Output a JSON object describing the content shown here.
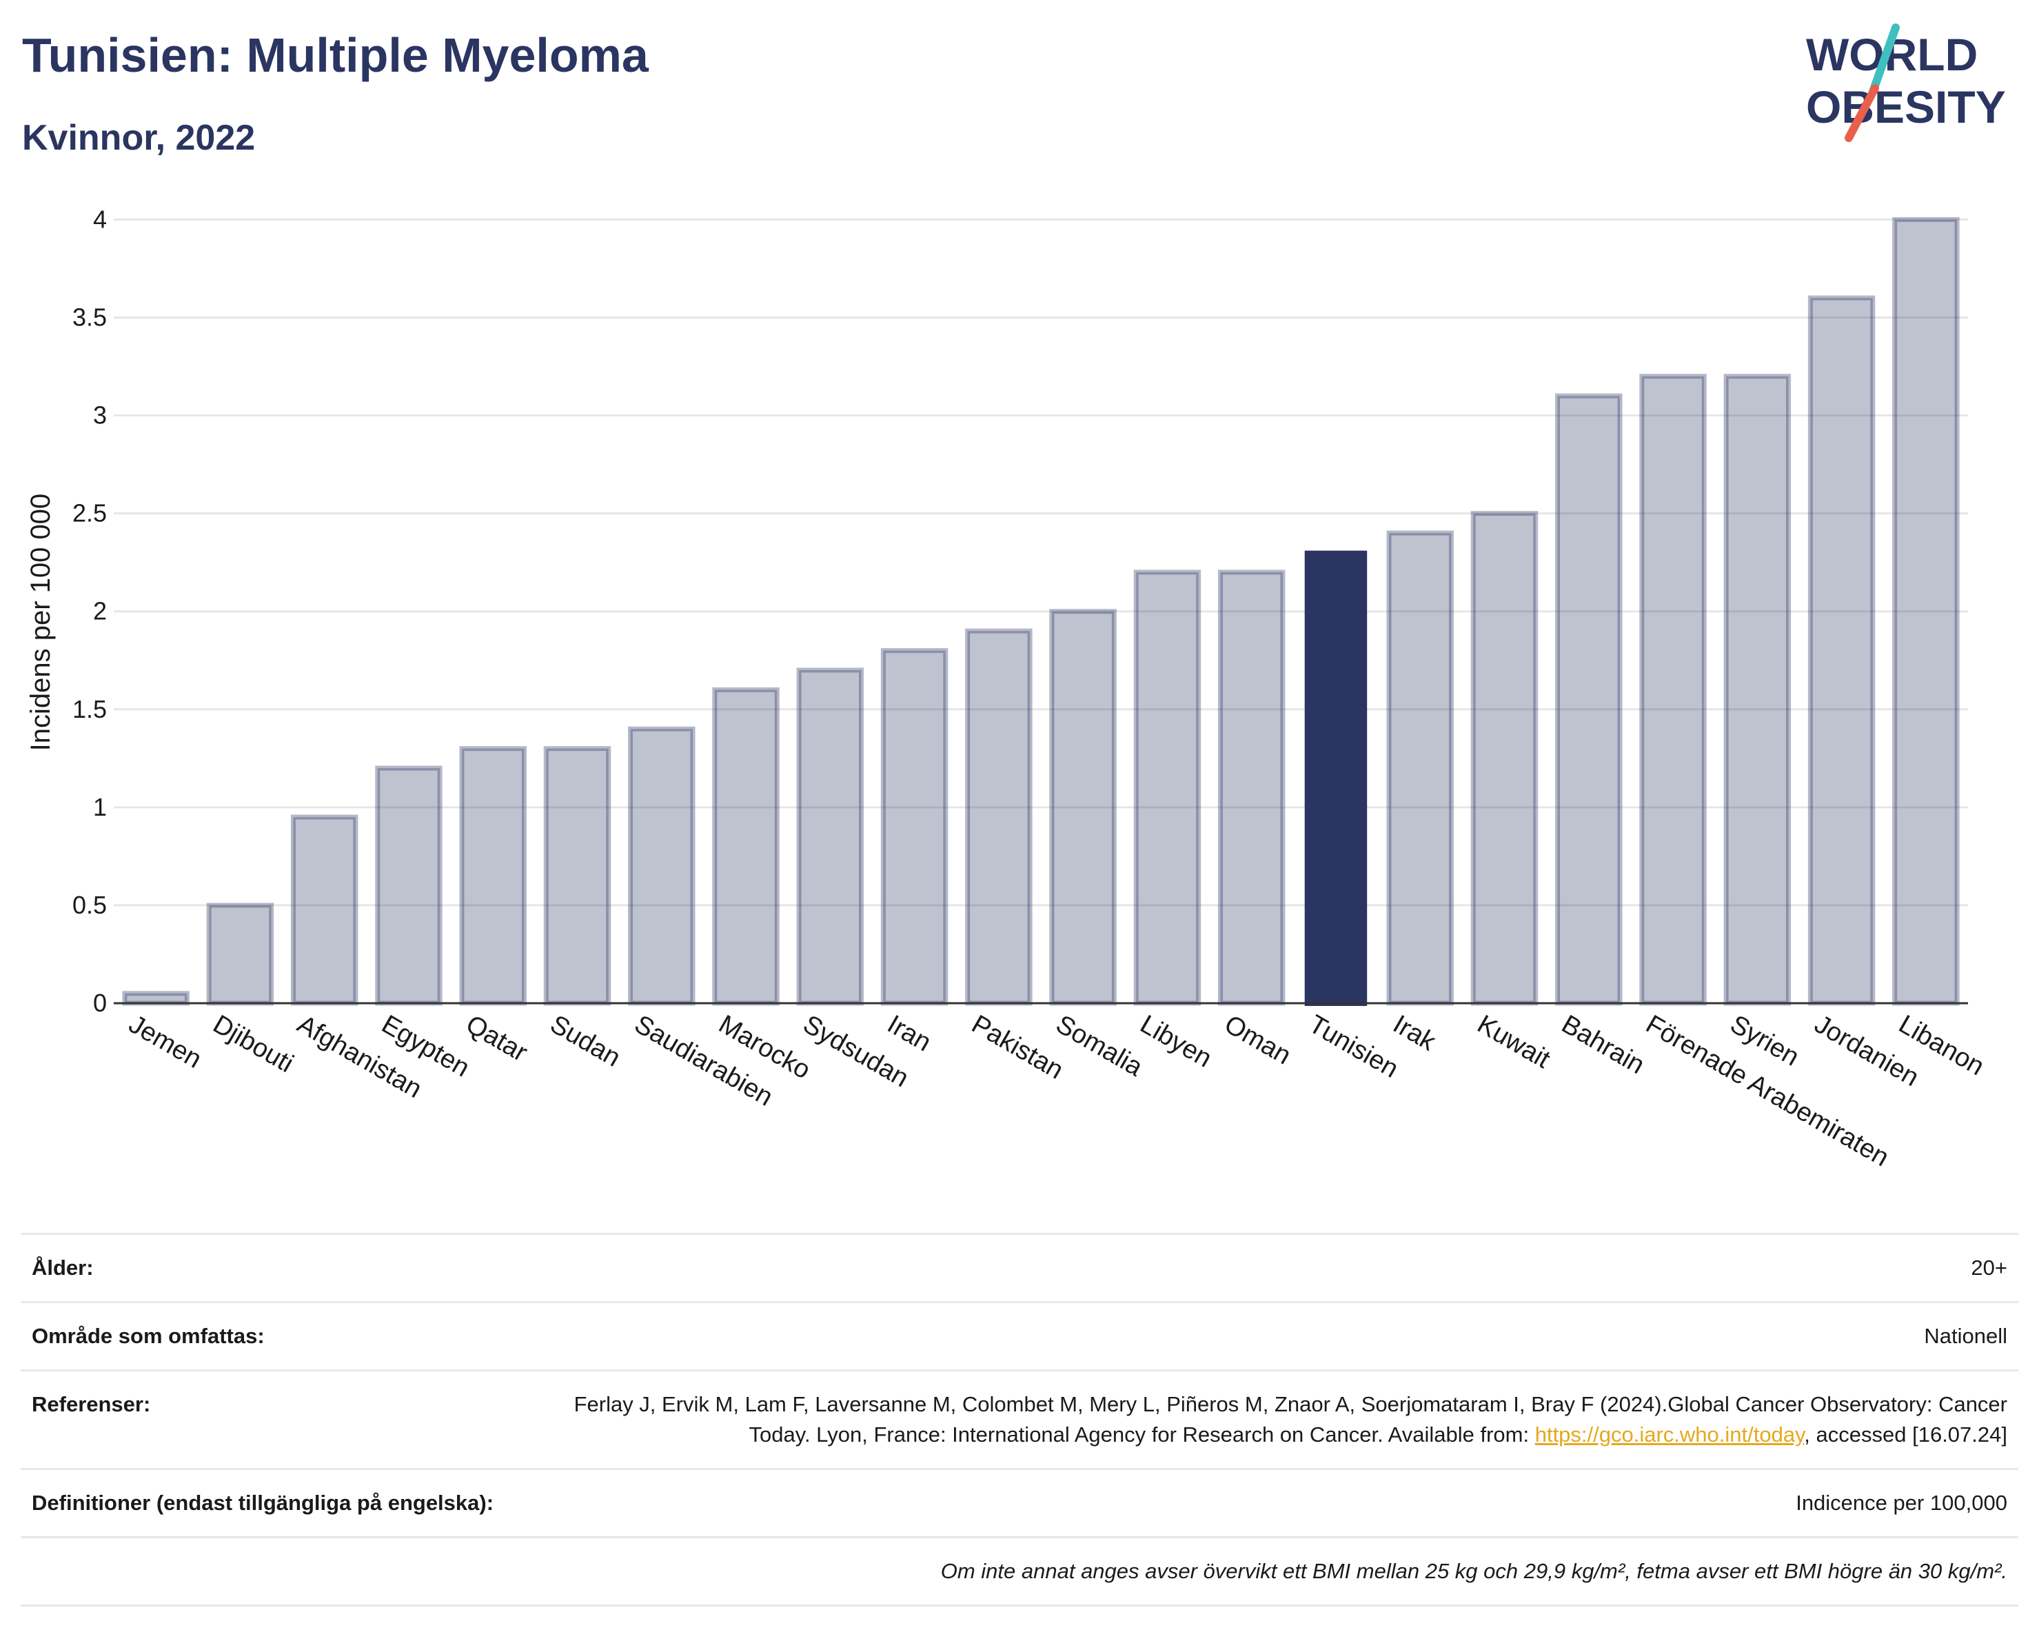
{
  "header": {
    "title": "Tunisien: Multiple Myeloma",
    "subtitle": "Kvinnor, 2022"
  },
  "logo": {
    "line1": "WORLD",
    "line2": "OBESITY",
    "slash_colors": [
      "#3fbfbf",
      "#e8604c"
    ],
    "text_color": "#2a3561"
  },
  "colors": {
    "bar_default": "#2a3561",
    "bar_default_opacity": 0.3,
    "bar_highlight": "#2a3561",
    "grid": "#e6e6e6",
    "axis": "#333333"
  },
  "chart_data": {
    "type": "bar",
    "categories": [
      "Jemen",
      "Djibouti",
      "Afghanistan",
      "Egypten",
      "Qatar",
      "Sudan",
      "Saudiarabien",
      "Marocko",
      "Sydsudan",
      "Iran",
      "Pakistan",
      "Somalia",
      "Libyen",
      "Oman",
      "Tunisien",
      "Irak",
      "Kuwait",
      "Bahrain",
      "Förenade Arabemiraten",
      "Syrien",
      "Jordanien",
      "Libanon"
    ],
    "values": [
      0.05,
      0.5,
      0.95,
      1.2,
      1.3,
      1.3,
      1.4,
      1.6,
      1.7,
      1.8,
      1.9,
      2.0,
      2.2,
      2.2,
      2.31,
      2.4,
      2.5,
      3.1,
      3.2,
      3.2,
      3.6,
      4.0
    ],
    "highlight": "Tunisien",
    "ylabel": "Incidens per 100 000",
    "ylim": [
      0,
      4.1
    ],
    "yticks": [
      0,
      0.5,
      1,
      1.5,
      2,
      2.5,
      3,
      3.5,
      4
    ],
    "ytick_labels": [
      "0",
      "0.5",
      "1",
      "1.5",
      "2",
      "2.5",
      "3",
      "3.5",
      "4"
    ],
    "grid": true,
    "legend": "none"
  },
  "info": {
    "age_label": "Ålder:",
    "age_value": "20+",
    "area_label": "Område som omfattas:",
    "area_value": "Nationell",
    "refs_label": "Referenser:",
    "refs_text_1": "Ferlay J, Ervik M, Lam F, Laversanne M, Colombet M, Mery L, Piñeros M, Znaor A, Soerjomataram I, Bray F (2024).Global Cancer Observatory: Cancer Today. Lyon, France: International Agency for Research on Cancer. Available from: ",
    "refs_link": "https://gco.iarc.who.int/today",
    "refs_text_2": ", accessed [16.07.24]",
    "defs_label": "Definitioner (endast tillgängliga på engelska):",
    "defs_value": "Indicence per 100,000",
    "footnote": "Om inte annat anges avser övervikt ett BMI mellan 25 kg och 29,9 kg/m², fetma avser ett BMI högre än 30 kg/m²."
  }
}
